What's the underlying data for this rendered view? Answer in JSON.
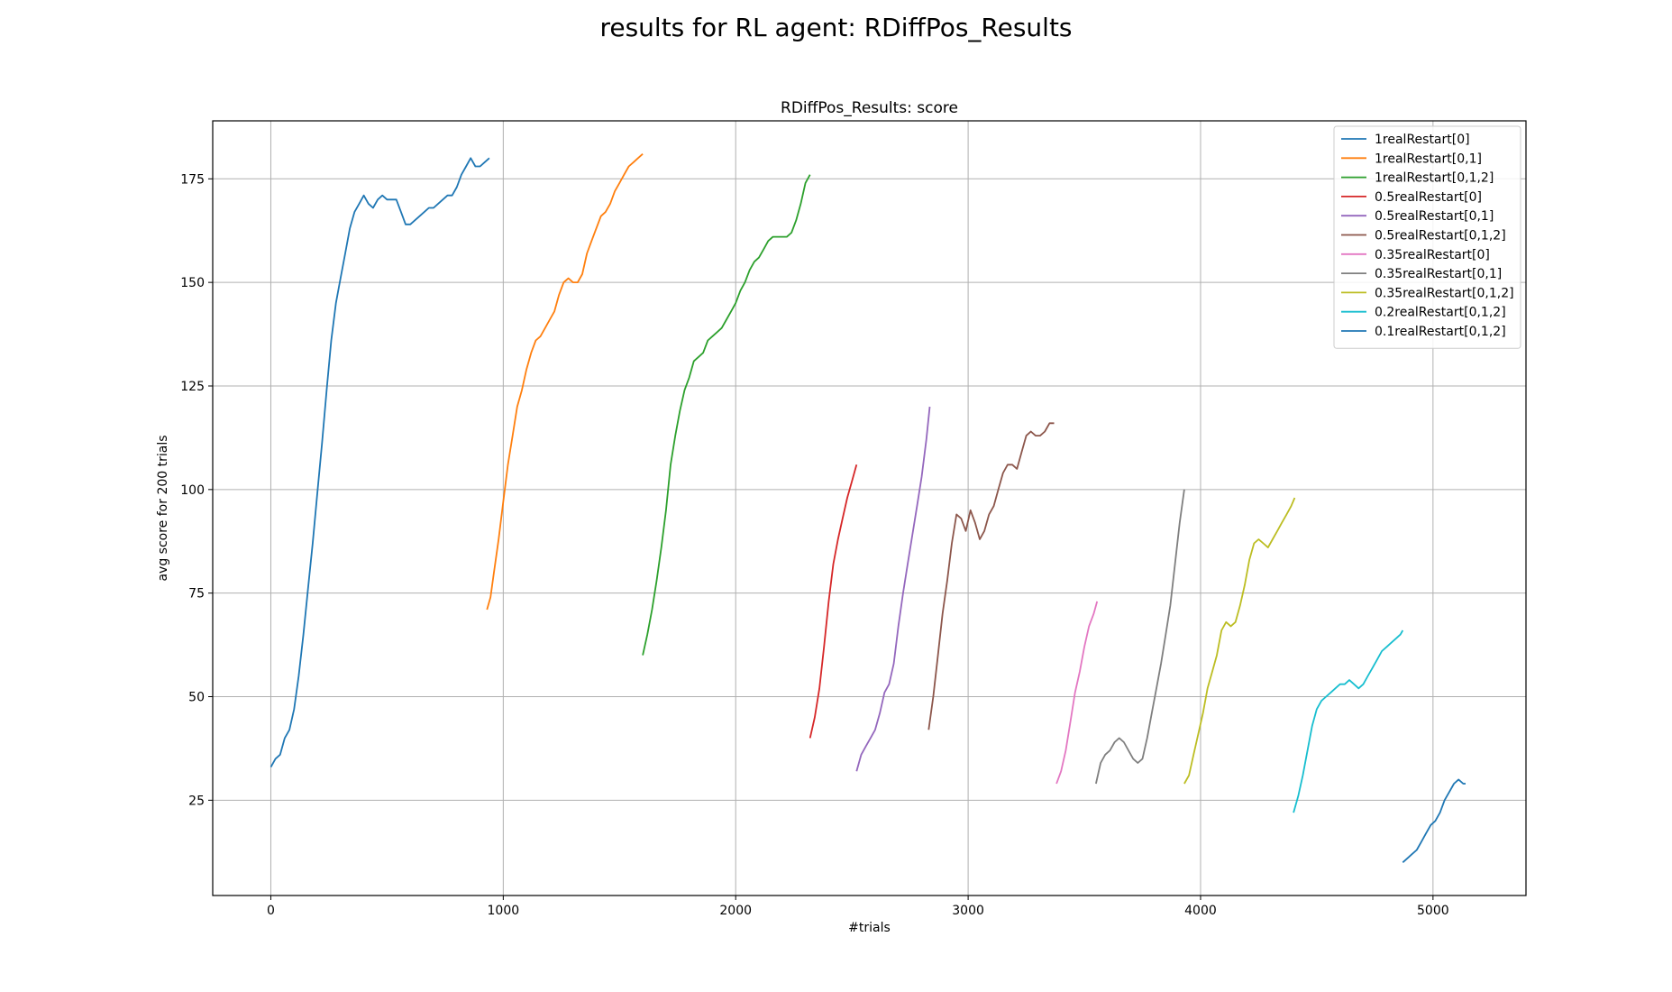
{
  "figure": {
    "suptitle": "results for RL agent: RDiffPos_Results"
  },
  "chart_data": {
    "type": "line",
    "title": "RDiffPos_Results: score",
    "xlabel": "#trials",
    "ylabel": "avg score for 200 trials",
    "xlim": [
      -250,
      5400
    ],
    "ylim": [
      2,
      189
    ],
    "xticks": [
      0,
      1000,
      2000,
      3000,
      4000,
      5000
    ],
    "yticks": [
      25,
      50,
      75,
      100,
      125,
      150,
      175
    ],
    "grid": true,
    "legend_position": "top-right",
    "series": [
      {
        "name": "1realRestart[0]",
        "color": "#1f77b4",
        "points": [
          [
            0,
            33
          ],
          [
            20,
            35
          ],
          [
            40,
            36
          ],
          [
            60,
            40
          ],
          [
            80,
            42
          ],
          [
            100,
            47
          ],
          [
            120,
            55
          ],
          [
            140,
            65
          ],
          [
            160,
            76
          ],
          [
            180,
            87
          ],
          [
            200,
            99
          ],
          [
            220,
            111
          ],
          [
            240,
            124
          ],
          [
            260,
            136
          ],
          [
            280,
            145
          ],
          [
            300,
            151
          ],
          [
            320,
            157
          ],
          [
            340,
            163
          ],
          [
            360,
            167
          ],
          [
            380,
            169
          ],
          [
            400,
            171
          ],
          [
            420,
            169
          ],
          [
            440,
            168
          ],
          [
            460,
            170
          ],
          [
            480,
            171
          ],
          [
            500,
            170
          ],
          [
            520,
            170
          ],
          [
            540,
            170
          ],
          [
            560,
            167
          ],
          [
            580,
            164
          ],
          [
            600,
            164
          ],
          [
            620,
            165
          ],
          [
            640,
            166
          ],
          [
            660,
            167
          ],
          [
            680,
            168
          ],
          [
            700,
            168
          ],
          [
            720,
            169
          ],
          [
            740,
            170
          ],
          [
            760,
            171
          ],
          [
            780,
            171
          ],
          [
            800,
            173
          ],
          [
            820,
            176
          ],
          [
            840,
            178
          ],
          [
            860,
            180
          ],
          [
            880,
            178
          ],
          [
            900,
            178
          ],
          [
            920,
            179
          ],
          [
            940,
            180
          ]
        ]
      },
      {
        "name": "1realRestart[0,1]",
        "color": "#ff7f0e",
        "points": [
          [
            930,
            71
          ],
          [
            945,
            74
          ],
          [
            960,
            80
          ],
          [
            980,
            88
          ],
          [
            1000,
            97
          ],
          [
            1020,
            106
          ],
          [
            1040,
            113
          ],
          [
            1060,
            120
          ],
          [
            1080,
            124
          ],
          [
            1100,
            129
          ],
          [
            1120,
            133
          ],
          [
            1140,
            136
          ],
          [
            1160,
            137
          ],
          [
            1180,
            139
          ],
          [
            1200,
            141
          ],
          [
            1220,
            143
          ],
          [
            1240,
            147
          ],
          [
            1260,
            150
          ],
          [
            1280,
            151
          ],
          [
            1300,
            150
          ],
          [
            1320,
            150
          ],
          [
            1340,
            152
          ],
          [
            1360,
            157
          ],
          [
            1380,
            160
          ],
          [
            1400,
            163
          ],
          [
            1420,
            166
          ],
          [
            1440,
            167
          ],
          [
            1460,
            169
          ],
          [
            1480,
            172
          ],
          [
            1500,
            174
          ],
          [
            1520,
            176
          ],
          [
            1540,
            178
          ],
          [
            1560,
            179
          ],
          [
            1580,
            180
          ],
          [
            1600,
            181
          ]
        ]
      },
      {
        "name": "1realRestart[0,1,2]",
        "color": "#2ca02c",
        "points": [
          [
            1600,
            60
          ],
          [
            1620,
            65
          ],
          [
            1640,
            71
          ],
          [
            1660,
            78
          ],
          [
            1680,
            86
          ],
          [
            1700,
            95
          ],
          [
            1720,
            106
          ],
          [
            1740,
            113
          ],
          [
            1760,
            119
          ],
          [
            1780,
            124
          ],
          [
            1800,
            127
          ],
          [
            1820,
            131
          ],
          [
            1840,
            132
          ],
          [
            1860,
            133
          ],
          [
            1880,
            136
          ],
          [
            1900,
            137
          ],
          [
            1920,
            138
          ],
          [
            1940,
            139
          ],
          [
            1960,
            141
          ],
          [
            1980,
            143
          ],
          [
            2000,
            145
          ],
          [
            2020,
            148
          ],
          [
            2040,
            150
          ],
          [
            2060,
            153
          ],
          [
            2080,
            155
          ],
          [
            2100,
            156
          ],
          [
            2120,
            158
          ],
          [
            2140,
            160
          ],
          [
            2160,
            161
          ],
          [
            2180,
            161
          ],
          [
            2200,
            161
          ],
          [
            2220,
            161
          ],
          [
            2240,
            162
          ],
          [
            2260,
            165
          ],
          [
            2280,
            169
          ],
          [
            2300,
            174
          ],
          [
            2320,
            176
          ]
        ]
      },
      {
        "name": "0.5realRestart[0]",
        "color": "#d62728",
        "points": [
          [
            2320,
            40
          ],
          [
            2340,
            45
          ],
          [
            2360,
            52
          ],
          [
            2380,
            62
          ],
          [
            2400,
            73
          ],
          [
            2420,
            82
          ],
          [
            2440,
            88
          ],
          [
            2460,
            93
          ],
          [
            2480,
            98
          ],
          [
            2500,
            102
          ],
          [
            2520,
            106
          ]
        ]
      },
      {
        "name": "0.5realRestart[0,1]",
        "color": "#9467bd",
        "points": [
          [
            2520,
            32
          ],
          [
            2540,
            36
          ],
          [
            2560,
            38
          ],
          [
            2580,
            40
          ],
          [
            2600,
            42
          ],
          [
            2620,
            46
          ],
          [
            2640,
            51
          ],
          [
            2660,
            53
          ],
          [
            2680,
            58
          ],
          [
            2700,
            67
          ],
          [
            2720,
            75
          ],
          [
            2740,
            82
          ],
          [
            2760,
            89
          ],
          [
            2780,
            96
          ],
          [
            2800,
            103
          ],
          [
            2820,
            112
          ],
          [
            2835,
            120
          ]
        ]
      },
      {
        "name": "0.5realRestart[0,1,2]",
        "color": "#8c564b",
        "points": [
          [
            2830,
            42
          ],
          [
            2850,
            50
          ],
          [
            2870,
            60
          ],
          [
            2890,
            70
          ],
          [
            2910,
            78
          ],
          [
            2930,
            87
          ],
          [
            2950,
            94
          ],
          [
            2970,
            93
          ],
          [
            2990,
            90
          ],
          [
            3010,
            95
          ],
          [
            3030,
            92
          ],
          [
            3050,
            88
          ],
          [
            3070,
            90
          ],
          [
            3090,
            94
          ],
          [
            3110,
            96
          ],
          [
            3130,
            100
          ],
          [
            3150,
            104
          ],
          [
            3170,
            106
          ],
          [
            3190,
            106
          ],
          [
            3210,
            105
          ],
          [
            3230,
            109
          ],
          [
            3250,
            113
          ],
          [
            3270,
            114
          ],
          [
            3290,
            113
          ],
          [
            3310,
            113
          ],
          [
            3330,
            114
          ],
          [
            3350,
            116
          ],
          [
            3370,
            116
          ]
        ]
      },
      {
        "name": "0.35realRestart[0]",
        "color": "#e377c2",
        "points": [
          [
            3380,
            29
          ],
          [
            3400,
            32
          ],
          [
            3420,
            37
          ],
          [
            3440,
            44
          ],
          [
            3460,
            51
          ],
          [
            3480,
            56
          ],
          [
            3500,
            62
          ],
          [
            3520,
            67
          ],
          [
            3540,
            70
          ],
          [
            3555,
            73
          ]
        ]
      },
      {
        "name": "0.35realRestart[0,1]",
        "color": "#7f7f7f",
        "points": [
          [
            3550,
            29
          ],
          [
            3570,
            34
          ],
          [
            3590,
            36
          ],
          [
            3610,
            37
          ],
          [
            3630,
            39
          ],
          [
            3650,
            40
          ],
          [
            3670,
            39
          ],
          [
            3690,
            37
          ],
          [
            3710,
            35
          ],
          [
            3730,
            34
          ],
          [
            3750,
            35
          ],
          [
            3770,
            40
          ],
          [
            3790,
            46
          ],
          [
            3810,
            52
          ],
          [
            3830,
            58
          ],
          [
            3850,
            65
          ],
          [
            3870,
            72
          ],
          [
            3890,
            82
          ],
          [
            3910,
            92
          ],
          [
            3930,
            100
          ]
        ]
      },
      {
        "name": "0.35realRestart[0,1,2]",
        "color": "#bcbd22",
        "points": [
          [
            3930,
            29
          ],
          [
            3950,
            31
          ],
          [
            3970,
            36
          ],
          [
            3990,
            41
          ],
          [
            4010,
            46
          ],
          [
            4030,
            52
          ],
          [
            4050,
            56
          ],
          [
            4070,
            60
          ],
          [
            4090,
            66
          ],
          [
            4110,
            68
          ],
          [
            4130,
            67
          ],
          [
            4150,
            68
          ],
          [
            4170,
            72
          ],
          [
            4190,
            77
          ],
          [
            4210,
            83
          ],
          [
            4230,
            87
          ],
          [
            4250,
            88
          ],
          [
            4270,
            87
          ],
          [
            4290,
            86
          ],
          [
            4310,
            88
          ],
          [
            4330,
            90
          ],
          [
            4350,
            92
          ],
          [
            4370,
            94
          ],
          [
            4390,
            96
          ],
          [
            4405,
            98
          ]
        ]
      },
      {
        "name": "0.2realRestart[0,1,2]",
        "color": "#17becf",
        "points": [
          [
            4400,
            22
          ],
          [
            4420,
            26
          ],
          [
            4440,
            31
          ],
          [
            4460,
            37
          ],
          [
            4480,
            43
          ],
          [
            4500,
            47
          ],
          [
            4520,
            49
          ],
          [
            4540,
            50
          ],
          [
            4560,
            51
          ],
          [
            4580,
            52
          ],
          [
            4600,
            53
          ],
          [
            4620,
            53
          ],
          [
            4640,
            54
          ],
          [
            4660,
            53
          ],
          [
            4680,
            52
          ],
          [
            4700,
            53
          ],
          [
            4720,
            55
          ],
          [
            4740,
            57
          ],
          [
            4760,
            59
          ],
          [
            4780,
            61
          ],
          [
            4800,
            62
          ],
          [
            4820,
            63
          ],
          [
            4840,
            64
          ],
          [
            4860,
            65
          ],
          [
            4870,
            66
          ]
        ]
      },
      {
        "name": "0.1realRestart[0,1,2]",
        "color": "#1f77b4",
        "points": [
          [
            4870,
            10
          ],
          [
            4890,
            11
          ],
          [
            4910,
            12
          ],
          [
            4930,
            13
          ],
          [
            4950,
            15
          ],
          [
            4970,
            17
          ],
          [
            4990,
            19
          ],
          [
            5010,
            20
          ],
          [
            5030,
            22
          ],
          [
            5050,
            25
          ],
          [
            5070,
            27
          ],
          [
            5090,
            29
          ],
          [
            5110,
            30
          ],
          [
            5130,
            29
          ],
          [
            5140,
            29
          ]
        ]
      }
    ]
  }
}
